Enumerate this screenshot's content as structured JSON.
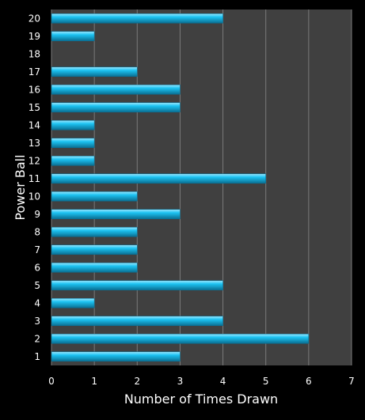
{
  "chart_data": {
    "type": "bar",
    "orientation": "horizontal",
    "title": "",
    "xlabel": "Number of Times Drawn",
    "ylabel": "Power Ball",
    "categories": [
      "1",
      "2",
      "3",
      "4",
      "5",
      "6",
      "7",
      "8",
      "9",
      "10",
      "11",
      "12",
      "13",
      "14",
      "15",
      "16",
      "17",
      "18",
      "19",
      "20"
    ],
    "values": [
      3,
      6,
      4,
      1,
      4,
      2,
      2,
      2,
      3,
      2,
      5,
      1,
      1,
      1,
      3,
      3,
      2,
      0,
      1,
      4
    ],
    "xlim": [
      0,
      7
    ],
    "x_ticks": [
      "0",
      "1",
      "2",
      "3",
      "4",
      "5",
      "6",
      "7"
    ],
    "grid": "vertical",
    "legend": "none",
    "colors": {
      "background": "#000000",
      "plot_area": "#404040",
      "gridline": "#7a7a7a",
      "bar": "#1cc3f2",
      "bar_highlight": "#9fe9ff",
      "bar_shadow": "#0a6f93",
      "text": "#ffffff"
    }
  }
}
